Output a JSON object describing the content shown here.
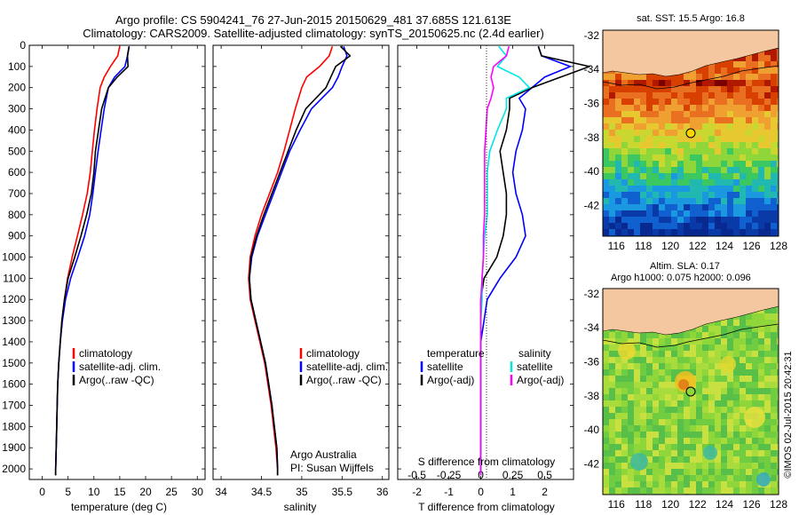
{
  "header": {
    "line1": "Argo profile: CS 5904241_76 27-Jun-2015 20150629_481 37.685S 121.613E",
    "line2": "Climatology: CARS2009. Satellite-adjusted climatology: synTS_20150625.nc (2.4d earlier)"
  },
  "side_label": "©IMOS 02-Jul-2015 20:42:31",
  "colors": {
    "climatology": "#ff0000",
    "satellite": "#0000ff",
    "argo": "#000000",
    "sal_satellite": "#00e5e5",
    "sal_argo": "#ff00ff",
    "land": "#f5c7a0"
  },
  "chart_data": [
    {
      "type": "line",
      "panel": "temperature",
      "xlabel": "temperature (deg C)",
      "xticks": [
        "0",
        "5",
        "10",
        "15",
        "20",
        "25",
        "30"
      ],
      "xlim": [
        -2.5,
        31.5
      ],
      "ylim": [
        2050,
        0
      ],
      "yticks": [
        "0",
        "100",
        "200",
        "300",
        "400",
        "500",
        "600",
        "700",
        "800",
        "900",
        "1000",
        "1100",
        "1200",
        "1300",
        "1400",
        "1500",
        "1600",
        "1700",
        "1800",
        "1900",
        "2000"
      ],
      "legend": [
        "climatology",
        "satellite-adj. clim.",
        "Argo(..raw -QC)"
      ],
      "series": [
        {
          "name": "climatology",
          "color": "#ff0000",
          "depth": [
            5,
            50,
            100,
            150,
            200,
            300,
            400,
            500,
            600,
            700,
            800,
            900,
            1000,
            1100,
            1200,
            1300,
            1400,
            1500,
            1600,
            1700,
            1800,
            1900,
            2000,
            2030
          ],
          "values": [
            15.0,
            14.6,
            13.2,
            12.0,
            11.2,
            10.6,
            10.1,
            9.7,
            9.3,
            8.7,
            7.8,
            6.8,
            5.8,
            4.9,
            4.3,
            3.8,
            3.5,
            3.2,
            3.0,
            2.9,
            2.8,
            2.7,
            2.6,
            2.6
          ]
        },
        {
          "name": "satellite-adj. clim.",
          "color": "#0000ff",
          "depth": [
            5,
            50,
            100,
            150,
            200,
            300,
            400,
            500,
            600,
            700,
            800,
            900,
            1000,
            1100,
            1200,
            1300,
            1400,
            1500,
            1600,
            1700,
            1800,
            1900,
            2000,
            2030
          ],
          "values": [
            16.8,
            16.5,
            16.0,
            14.0,
            12.8,
            12.0,
            11.4,
            10.8,
            10.3,
            9.8,
            9.2,
            8.2,
            6.9,
            5.5,
            4.5,
            3.9,
            3.5,
            3.2,
            3.0,
            2.9,
            2.8,
            2.7,
            2.6,
            2.6
          ]
        },
        {
          "name": "Argo(..raw -QC)",
          "color": "#000000",
          "depth": [
            5,
            50,
            100,
            150,
            200,
            300,
            400,
            500,
            600,
            700,
            800,
            900,
            1000,
            1100,
            1200,
            1300,
            1400,
            1500,
            1600,
            1700,
            1800,
            1900,
            2000,
            2030
          ],
          "values": [
            16.8,
            16.5,
            16.6,
            14.5,
            12.8,
            11.5,
            10.9,
            10.3,
            10.0,
            9.5,
            8.6,
            7.5,
            6.3,
            5.0,
            4.3,
            3.8,
            3.5,
            3.2,
            3.0,
            2.9,
            2.8,
            2.7,
            2.6,
            2.6
          ]
        }
      ]
    },
    {
      "type": "line",
      "panel": "salinity",
      "xlabel": "salinity",
      "xticks": [
        "34",
        "34.5",
        "35",
        "35.5",
        "36"
      ],
      "xlim": [
        33.9,
        36.08
      ],
      "ylim": [
        2050,
        0
      ],
      "legend": [
        "climatology",
        "satellite-adj. clim.",
        "Argo(..raw -QC)"
      ],
      "annotation": [
        "Argo Australia",
        "PI: Susan Wijffels"
      ],
      "series": [
        {
          "name": "climatology",
          "color": "#ff0000",
          "depth": [
            5,
            50,
            100,
            150,
            200,
            300,
            400,
            500,
            600,
            700,
            800,
            900,
            1000,
            1100,
            1200,
            1300,
            1400,
            1500,
            1600,
            1700,
            1800,
            1900,
            2000,
            2030
          ],
          "values": [
            35.38,
            35.34,
            35.22,
            35.06,
            35.0,
            34.92,
            34.85,
            34.78,
            34.7,
            34.6,
            34.5,
            34.42,
            34.36,
            34.34,
            34.36,
            34.42,
            34.48,
            34.54,
            34.58,
            34.62,
            34.65,
            34.68,
            34.7,
            34.7
          ]
        },
        {
          "name": "satellite-adj. clim.",
          "color": "#0000ff",
          "depth": [
            5,
            50,
            100,
            150,
            200,
            300,
            400,
            500,
            600,
            700,
            800,
            900,
            1000,
            1100,
            1200,
            1300,
            1400,
            1500,
            1600,
            1700,
            1800,
            1900,
            2000,
            2030
          ],
          "values": [
            35.52,
            35.56,
            35.5,
            35.45,
            35.38,
            35.12,
            34.98,
            34.85,
            34.75,
            34.65,
            34.55,
            34.45,
            34.38,
            34.35,
            34.37,
            34.43,
            34.49,
            34.55,
            34.59,
            34.63,
            34.66,
            34.69,
            34.7,
            34.7
          ]
        },
        {
          "name": "Argo(..raw -QC)",
          "color": "#000000",
          "depth": [
            5,
            50,
            100,
            150,
            200,
            300,
            400,
            500,
            600,
            700,
            800,
            900,
            1000,
            1100,
            1200,
            1300,
            1400,
            1500,
            1600,
            1700,
            1800,
            1900,
            2000,
            2030
          ],
          "values": [
            35.48,
            35.6,
            35.42,
            35.36,
            35.3,
            35.05,
            34.93,
            34.83,
            34.73,
            34.63,
            34.53,
            34.44,
            34.37,
            34.35,
            34.37,
            34.43,
            34.49,
            34.55,
            34.59,
            34.63,
            34.66,
            34.69,
            34.7,
            34.7
          ]
        }
      ]
    },
    {
      "type": "line",
      "panel": "difference",
      "xlabel": "T difference from climatology",
      "xticks": [
        "-2",
        "-1",
        "0",
        "1",
        "2"
      ],
      "xlim": [
        -2.6,
        2.9
      ],
      "top_label": "S difference from climatology",
      "top_ticks": [
        "-0.5",
        "-0.25",
        "0",
        "0.25",
        "0.5"
      ],
      "ylim": [
        2050,
        0
      ],
      "legend_titles": [
        "temperature",
        "salinity"
      ],
      "legend": [
        "satellite",
        "Argo(-adj)",
        "satellite",
        "Argo(-adj)"
      ],
      "series": [
        {
          "name": "temperature satellite",
          "color": "#0000ff",
          "depth": [
            5,
            50,
            100,
            150,
            200,
            250,
            300,
            400,
            500,
            600,
            700,
            800,
            900,
            1000,
            1100,
            1200,
            1300,
            1400,
            1600,
            1800,
            2000,
            2030
          ],
          "values": [
            1.8,
            1.9,
            2.8,
            2.0,
            1.6,
            1.2,
            1.4,
            1.3,
            1.1,
            1.0,
            1.1,
            1.3,
            1.4,
            1.1,
            0.6,
            0.2,
            0.1,
            0.0,
            0.0,
            0.0,
            0.0,
            0.0
          ]
        },
        {
          "name": "temperature Argo(-adj)",
          "color": "#000000",
          "depth": [
            5,
            50,
            100,
            150,
            200,
            250,
            300,
            400,
            500,
            600,
            700,
            800,
            900,
            1000,
            1100,
            1200,
            1300,
            1400,
            1600,
            1800,
            2000,
            2030
          ],
          "values": [
            1.8,
            1.9,
            3.4,
            2.5,
            1.6,
            0.9,
            0.9,
            0.8,
            0.6,
            0.7,
            0.8,
            0.8,
            0.7,
            0.5,
            0.1,
            0.0,
            0.0,
            0.0,
            0.0,
            0.0,
            0.0,
            0.0
          ]
        },
        {
          "name": "salinity satellite",
          "color": "#00e5e5",
          "depth": [
            5,
            50,
            100,
            150,
            200,
            250,
            300,
            400,
            500,
            600,
            700,
            800,
            900,
            1000,
            1100,
            1200,
            1300,
            1400,
            1600,
            1800,
            2000,
            2030
          ],
          "values": [
            0.14,
            0.2,
            0.13,
            0.3,
            0.38,
            0.2,
            0.2,
            0.13,
            0.07,
            0.05,
            0.05,
            0.05,
            0.03,
            0.02,
            0.01,
            0.01,
            0.0,
            0.0,
            0.0,
            0.0,
            0.0,
            0.0
          ]
        },
        {
          "name": "salinity Argo(-adj)",
          "color": "#ff00ff",
          "depth": [
            5,
            50,
            100,
            150,
            200,
            250,
            300,
            400,
            500,
            600,
            700,
            800,
            900,
            1000,
            1100,
            1200,
            1300,
            1400,
            1600,
            1800,
            2000,
            2030
          ],
          "values": [
            0.22,
            0.2,
            0.1,
            0.08,
            0.1,
            0.08,
            0.05,
            0.04,
            0.03,
            0.03,
            0.03,
            0.03,
            0.02,
            0.02,
            0.01,
            0.0,
            0.0,
            0.0,
            0.0,
            0.0,
            0.0,
            0.0
          ]
        }
      ]
    },
    {
      "type": "heatmap",
      "panel": "SST map",
      "title": "sat. SST: 15.5 Argo: 16.8",
      "xticks": [
        "116",
        "118",
        "120",
        "122",
        "124",
        "126",
        "128"
      ],
      "yticks": [
        "-32",
        "-34",
        "-36",
        "-38",
        "-40",
        "-42"
      ],
      "xlim": [
        115,
        128
      ],
      "ylim": [
        -43.8,
        -31.7
      ],
      "profile_location": {
        "lon": 121.613,
        "lat": -37.685
      }
    },
    {
      "type": "heatmap",
      "panel": "SLA map",
      "title_lines": [
        "Altim. SLA: 0.17",
        "Argo h1000: 0.075 h2000: 0.096"
      ],
      "xticks": [
        "116",
        "118",
        "120",
        "122",
        "124",
        "126",
        "128"
      ],
      "yticks": [
        "-32",
        "-34",
        "-36",
        "-38",
        "-40",
        "-42"
      ],
      "xlim": [
        115,
        128
      ],
      "ylim": [
        -43.8,
        -31.7
      ],
      "profile_location": {
        "lon": 121.613,
        "lat": -37.685
      }
    }
  ]
}
